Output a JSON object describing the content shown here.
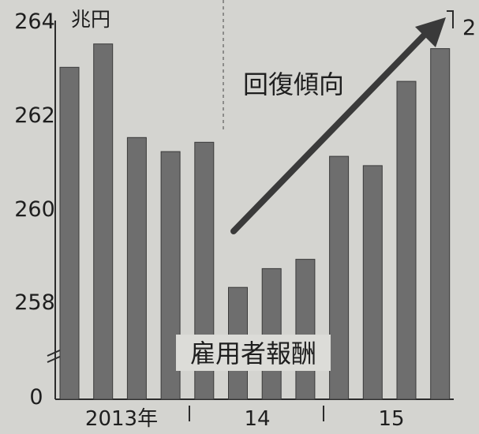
{
  "chart_data": {
    "type": "bar",
    "ylabel": "兆円",
    "ylim": [
      257,
      264
    ],
    "y_ticks": [
      "264",
      "262",
      "260",
      "258",
      "0"
    ],
    "axis_break": true,
    "x_group_labels": [
      "2013年",
      "14",
      "15"
    ],
    "series": [
      {
        "name": "雇用者報酬",
        "values": [
          263.0,
          263.5,
          261.5,
          261.2,
          261.4,
          258.3,
          258.7,
          258.9,
          261.1,
          260.9,
          262.7,
          263.4
        ]
      }
    ],
    "annotations": {
      "trend": "回復傾向",
      "cutoff_label": "2"
    },
    "grid": false,
    "colors": {
      "bar": "#6e6e6e",
      "background": "#d4d4d0",
      "arrow": "#3a3a3a"
    }
  }
}
